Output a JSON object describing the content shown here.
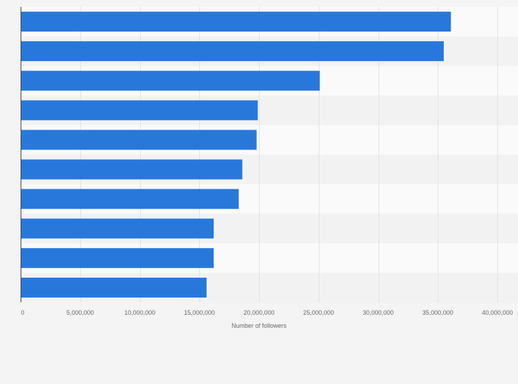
{
  "colors": {
    "bar": "#2878dc",
    "background": "#f4f4f4",
    "band_light": "#fafafa",
    "band_dark": "#f2f2f2",
    "grid": "#e2e2e2",
    "axis": "#444444",
    "text": "#666666"
  },
  "chart_data": {
    "type": "bar",
    "orientation": "horizontal",
    "title": "",
    "xlabel": "Number of followers",
    "ylabel": "",
    "xlim": [
      0,
      40000000
    ],
    "xticks": [
      0,
      5000000,
      10000000,
      15000000,
      20000000,
      25000000,
      30000000,
      35000000,
      40000000
    ],
    "xtick_labels": [
      "0",
      "5,000,000",
      "10,000,000",
      "15,000,000",
      "20,000,000",
      "25,000,000",
      "30,000,000",
      "35,000,000",
      "40,000,000"
    ],
    "categories": [
      "",
      "",
      "",
      "",
      "",
      "",
      "",
      "",
      "",
      ""
    ],
    "values": [
      36100000,
      35500000,
      25100000,
      19900000,
      19800000,
      18600000,
      18300000,
      16200000,
      16200000,
      15600000
    ],
    "grid": true,
    "legend": "none"
  }
}
